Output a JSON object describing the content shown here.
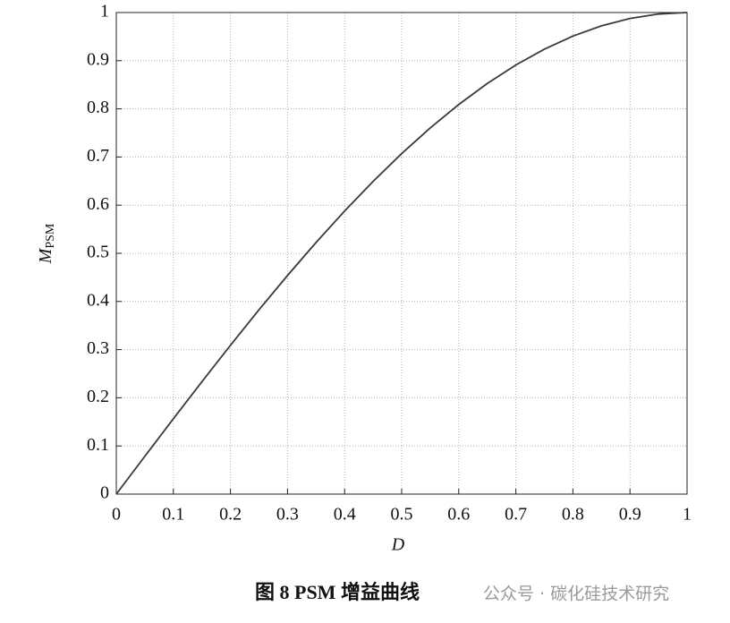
{
  "chart_data": {
    "type": "line",
    "xlabel": "D",
    "ylabel": "M",
    "ylabel_subscript": "PSM",
    "x": [
      0,
      0.05,
      0.1,
      0.15,
      0.2,
      0.25,
      0.3,
      0.35,
      0.4,
      0.45,
      0.5,
      0.55,
      0.6,
      0.65,
      0.7,
      0.75,
      0.8,
      0.85,
      0.9,
      0.95,
      1
    ],
    "series": [
      {
        "color": "#3a3a3a",
        "values": [
          0,
          0.0785,
          0.1564,
          0.2334,
          0.309,
          0.3827,
          0.454,
          0.5225,
          0.5878,
          0.6494,
          0.7071,
          0.7604,
          0.809,
          0.8526,
          0.891,
          0.9239,
          0.9511,
          0.9724,
          0.9877,
          0.9969,
          1
        ]
      }
    ],
    "xlim": [
      0,
      1
    ],
    "ylim": [
      0,
      1
    ],
    "xticks": [
      0,
      0.1,
      0.2,
      0.3,
      0.4,
      0.5,
      0.6,
      0.7,
      0.8,
      0.9,
      1
    ],
    "yticks": [
      0,
      0.1,
      0.2,
      0.3,
      0.4,
      0.5,
      0.6,
      0.7,
      0.8,
      0.9,
      1
    ],
    "grid": true
  },
  "caption": "图 8  PSM 增益曲线",
  "watermark": "公众号 · 碳化硅技术研究"
}
